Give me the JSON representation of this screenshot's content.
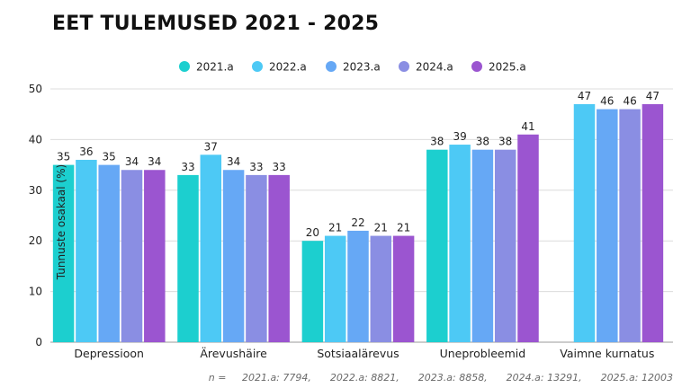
{
  "chart_data": {
    "type": "bar",
    "title": "EET TULEMUSED 2021 - 2025",
    "ylabel": "Tunnuste osakaal (%)",
    "xlabel": "",
    "ylim": [
      0,
      50
    ],
    "yticks": [
      0,
      10,
      20,
      30,
      40,
      50
    ],
    "grid": true,
    "legend_position": "top-center",
    "categories": [
      "Depressioon",
      "Ärevushäire",
      "Sotsiaalärevus",
      "Uneprobleemid",
      "Vaimne kurnatus"
    ],
    "series": [
      {
        "name": "2021.a",
        "color": "#1ccfcf",
        "values": [
          35,
          33,
          20,
          38,
          null
        ]
      },
      {
        "name": "2022.a",
        "color": "#4dc9f5",
        "values": [
          36,
          37,
          21,
          39,
          47
        ]
      },
      {
        "name": "2023.a",
        "color": "#66a8f5",
        "values": [
          35,
          34,
          22,
          38,
          46
        ]
      },
      {
        "name": "2024.a",
        "color": "#8a8ee3",
        "values": [
          34,
          33,
          21,
          38,
          46
        ]
      },
      {
        "name": "2025.a",
        "color": "#9b55d0",
        "values": [
          34,
          33,
          21,
          41,
          47
        ]
      }
    ],
    "footnote": "n =     2021.a: 7794,      2022.a: 8821,      2023.a: 8858,      2024.a: 13291,      2025.a: 12003"
  }
}
